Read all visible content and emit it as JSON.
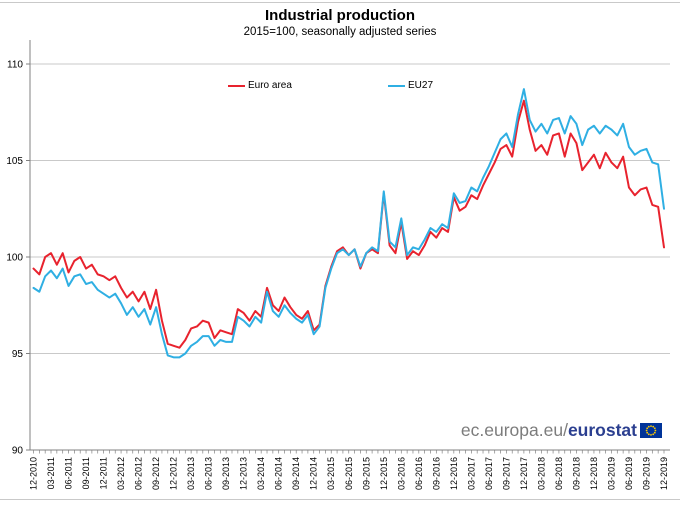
{
  "title": "Industrial production",
  "subtitle": "2015=100, seasonally adjusted series",
  "branding": {
    "url_prefix": "ec.europa.eu/",
    "brand": "eurostat"
  },
  "colors": {
    "euro_area": "#e8232e",
    "eu27": "#2fafe3",
    "grid": "#c9c9c9",
    "axis": "#808080",
    "brand_gray": "#7c7c7c",
    "brand_blue": "#2b3f90",
    "flag_blue": "#003399",
    "flag_stars": "#ffcc00"
  },
  "chart_data": {
    "type": "line",
    "title": "Industrial production",
    "subtitle": "2015=100, seasonally adjusted series",
    "grid": true,
    "legend_position": "top-inside",
    "ylim": [
      90,
      110
    ],
    "yticks": [
      90,
      95,
      100,
      105,
      110
    ],
    "x_start": "12-2010",
    "x_end": "12-2019",
    "x_frequency": "monthly",
    "x_tick_labels": [
      "12-2010",
      "03-2011",
      "06-2011",
      "09-2011",
      "12-2011",
      "03-2012",
      "06-2012",
      "09-2012",
      "12-2012",
      "03-2013",
      "06-2013",
      "09-2013",
      "12-2013",
      "03-2014",
      "06-2014",
      "09-2014",
      "12-2014",
      "03-2015",
      "06-2015",
      "09-2015",
      "12-2015",
      "03-2016",
      "06-2016",
      "09-2016",
      "12-2016",
      "03-2017",
      "06-2017",
      "09-2017",
      "12-2017",
      "03-2018",
      "06-2018",
      "09-2018",
      "12-2018",
      "03-2019",
      "06-2019",
      "09-2019",
      "12-2019"
    ],
    "x_label_every_n_months": 3,
    "series": [
      {
        "name": "Euro area",
        "color": "#e8232e",
        "values": [
          99.4,
          99.1,
          100.0,
          100.2,
          99.6,
          100.2,
          99.2,
          99.8,
          100.0,
          99.4,
          99.6,
          99.1,
          99.0,
          98.8,
          99.0,
          98.4,
          97.9,
          98.2,
          97.7,
          98.2,
          97.3,
          98.3,
          96.7,
          95.5,
          95.4,
          95.3,
          95.7,
          96.3,
          96.4,
          96.7,
          96.6,
          95.8,
          96.2,
          96.1,
          96.0,
          97.3,
          97.1,
          96.7,
          97.2,
          96.9,
          98.4,
          97.5,
          97.2,
          97.9,
          97.4,
          97.0,
          96.8,
          97.2,
          96.2,
          96.5,
          98.5,
          99.5,
          100.3,
          100.5,
          100.1,
          100.4,
          99.4,
          100.2,
          100.4,
          100.2,
          103.3,
          100.6,
          100.2,
          101.8,
          99.9,
          100.3,
          100.1,
          100.6,
          101.3,
          101.0,
          101.5,
          101.3,
          103.1,
          102.4,
          102.6,
          103.2,
          103.0,
          103.7,
          104.3,
          104.9,
          105.6,
          105.8,
          105.2,
          107.0,
          108.1,
          106.6,
          105.5,
          105.8,
          105.3,
          106.3,
          106.4,
          105.2,
          106.4,
          105.9,
          104.5,
          104.9,
          105.3,
          104.6,
          105.4,
          104.9,
          104.6,
          105.2,
          103.6,
          103.2,
          103.5,
          103.6,
          102.7,
          102.6,
          100.5
        ]
      },
      {
        "name": "EU27",
        "color": "#2fafe3",
        "values": [
          98.4,
          98.2,
          99.0,
          99.3,
          98.9,
          99.4,
          98.5,
          99.0,
          99.1,
          98.6,
          98.7,
          98.3,
          98.1,
          97.9,
          98.1,
          97.6,
          97.0,
          97.4,
          96.9,
          97.3,
          96.5,
          97.4,
          96.0,
          94.9,
          94.8,
          94.8,
          95.0,
          95.4,
          95.6,
          95.9,
          95.9,
          95.4,
          95.7,
          95.6,
          95.6,
          96.9,
          96.7,
          96.4,
          96.9,
          96.6,
          98.2,
          97.2,
          96.9,
          97.5,
          97.1,
          96.8,
          96.6,
          97.0,
          96.0,
          96.4,
          98.4,
          99.4,
          100.2,
          100.4,
          100.1,
          100.4,
          99.5,
          100.2,
          100.5,
          100.3,
          103.4,
          100.8,
          100.5,
          102.0,
          100.1,
          100.5,
          100.4,
          100.9,
          101.5,
          101.3,
          101.7,
          101.5,
          103.3,
          102.8,
          102.9,
          103.6,
          103.4,
          104.1,
          104.7,
          105.4,
          106.1,
          106.4,
          105.7,
          107.4,
          108.7,
          107.1,
          106.5,
          106.9,
          106.4,
          107.1,
          107.2,
          106.4,
          107.3,
          106.9,
          105.8,
          106.6,
          106.8,
          106.4,
          106.8,
          106.6,
          106.3,
          106.9,
          105.7,
          105.3,
          105.5,
          105.6,
          104.9,
          104.8,
          102.5
        ]
      }
    ]
  }
}
